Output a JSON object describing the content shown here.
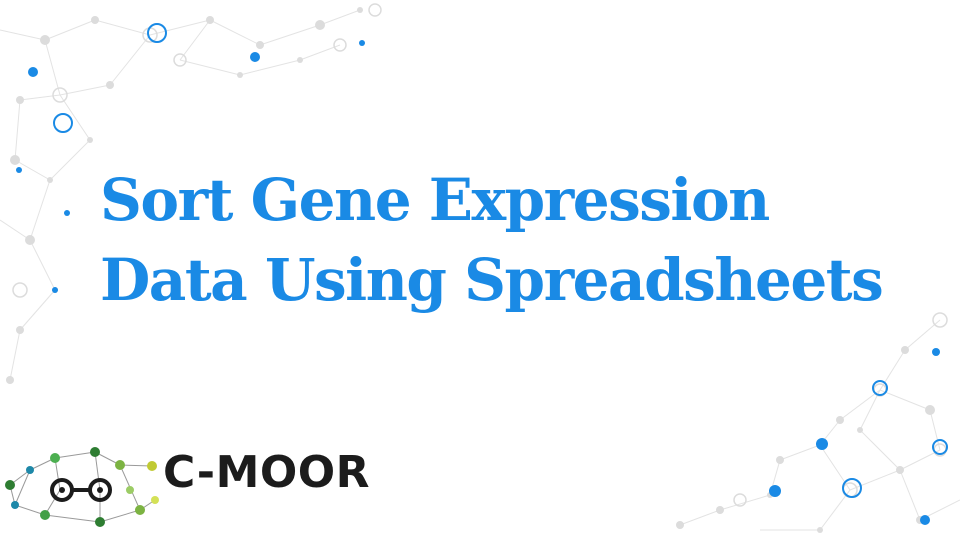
{
  "slide": {
    "title_line1": "Sort Gene Expression",
    "title_line2": "Data Using Spreadsheets"
  },
  "logo": {
    "text": "C-MOOR",
    "icon": "network-molecule-icon"
  },
  "colors": {
    "title": "#1a8ae5",
    "accent_dot": "#1a8ae5",
    "network_gray": "#d9d9d9",
    "logo_text": "#1c1c1c"
  }
}
